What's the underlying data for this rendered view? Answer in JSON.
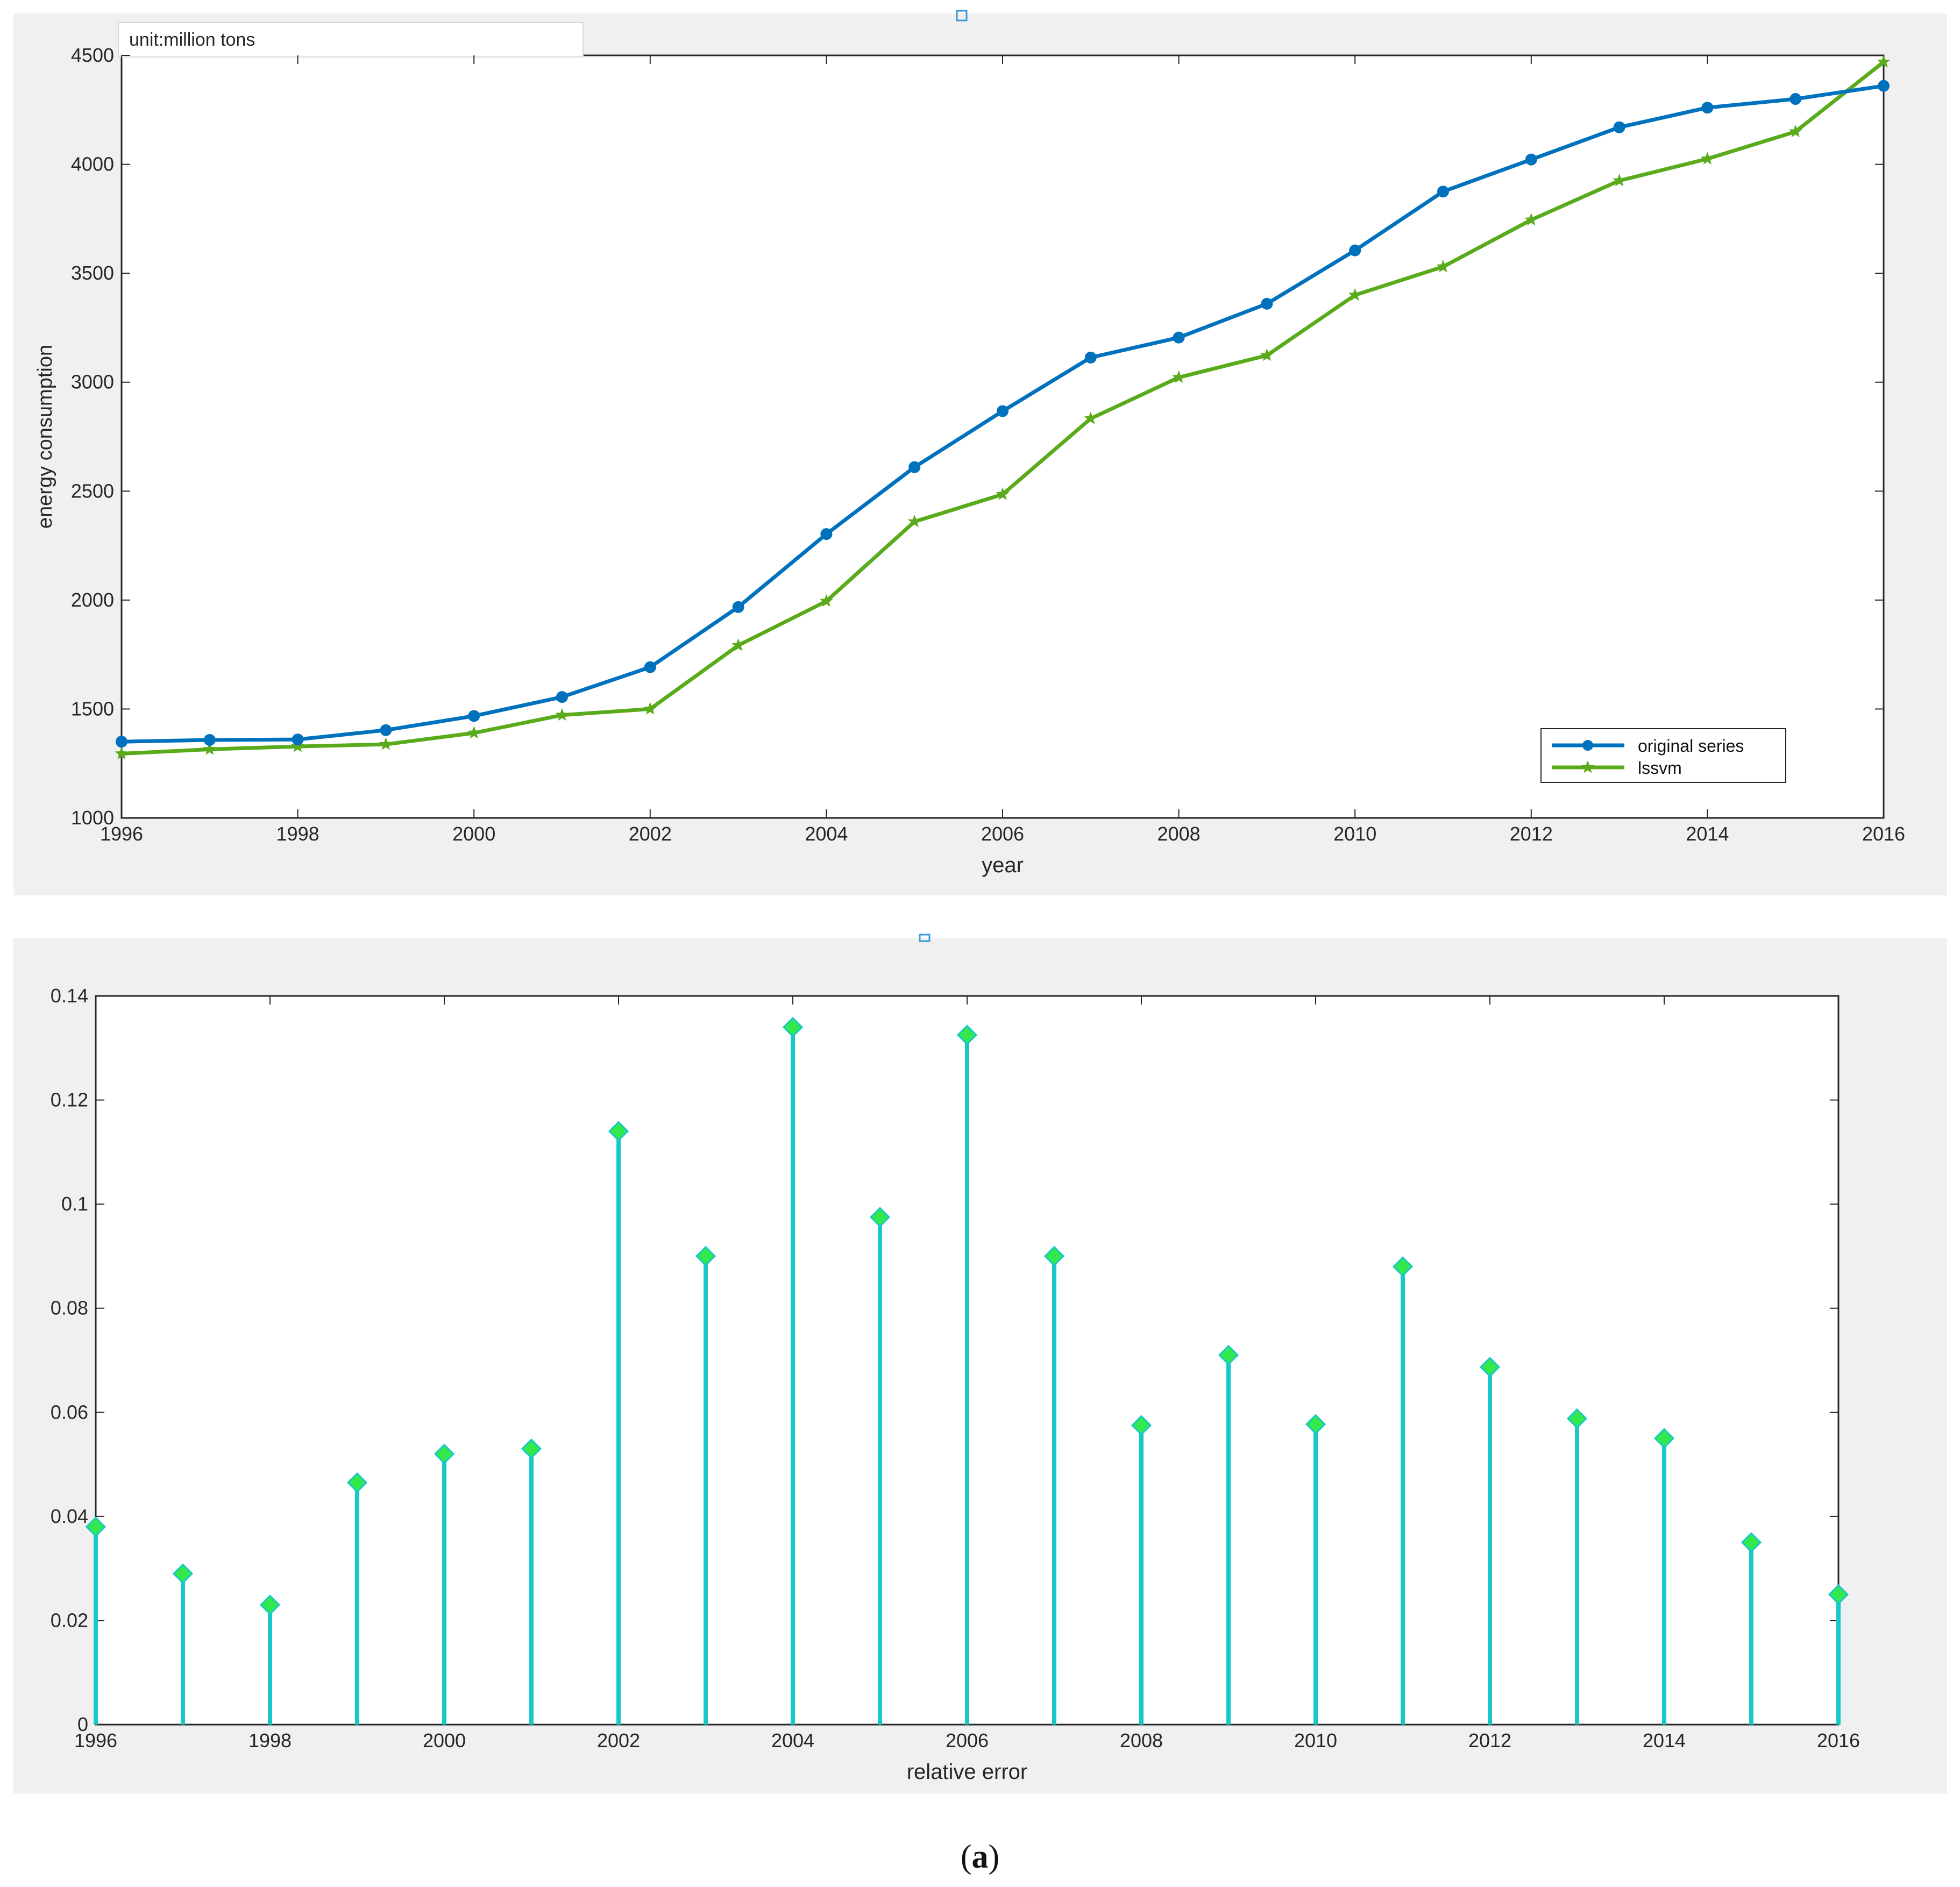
{
  "chart_data": [
    {
      "type": "line",
      "annotation": "unit:million tons",
      "xlabel": "year",
      "ylabel": "energy consumption",
      "xlim": [
        1996,
        2016
      ],
      "ylim": [
        1000,
        4500
      ],
      "x_ticks": [
        1996,
        1998,
        2000,
        2002,
        2004,
        2006,
        2008,
        2010,
        2012,
        2014,
        2016
      ],
      "y_ticks": [
        1000,
        1500,
        2000,
        2500,
        3000,
        3500,
        4000,
        4500
      ],
      "grid": false,
      "legend_position": "bottom-right",
      "x": [
        1996,
        1997,
        1998,
        1999,
        2000,
        2001,
        2002,
        2003,
        2004,
        2005,
        2006,
        2007,
        2008,
        2009,
        2010,
        2011,
        2012,
        2013,
        2014,
        2015,
        2016
      ],
      "series": [
        {
          "name": "original series",
          "color": "#0072bd",
          "marker": "circle",
          "values": [
            1350,
            1358,
            1360,
            1403,
            1468,
            1555,
            1692,
            1968,
            2303,
            2610,
            2867,
            3113,
            3205,
            3360,
            3605,
            3875,
            4022,
            4170,
            4260,
            4300,
            4360
          ]
        },
        {
          "name": "lssvm",
          "color": "#5aab1c",
          "marker": "star",
          "values": [
            1295,
            1315,
            1328,
            1338,
            1390,
            1472,
            1500,
            1792,
            1995,
            2360,
            2485,
            2833,
            3022,
            3123,
            3400,
            3530,
            3745,
            3925,
            4025,
            4150,
            4470
          ]
        }
      ]
    },
    {
      "type": "stem",
      "xlabel": "relative error",
      "ylabel": "",
      "xlim": [
        1996,
        2016
      ],
      "ylim": [
        0,
        0.14
      ],
      "x_ticks": [
        1996,
        1998,
        2000,
        2002,
        2004,
        2006,
        2008,
        2010,
        2012,
        2014,
        2016
      ],
      "y_ticks": [
        "0",
        "0.02",
        "0.04",
        "0.06",
        "0.08",
        "0.1",
        "0.12",
        "0.14"
      ],
      "grid": false,
      "stem_color": "#17c8c8",
      "marker_color": "#33e84a",
      "marker": "diamond",
      "x": [
        1996,
        1997,
        1998,
        1999,
        2000,
        2001,
        2002,
        2003,
        2004,
        2005,
        2006,
        2007,
        2008,
        2009,
        2010,
        2011,
        2012,
        2013,
        2014,
        2015,
        2016
      ],
      "values": [
        0.038,
        0.029,
        0.023,
        0.0465,
        0.052,
        0.053,
        0.114,
        0.09,
        0.134,
        0.0975,
        0.1325,
        0.09,
        0.0575,
        0.071,
        0.0577,
        0.088,
        0.0687,
        0.0588,
        0.055,
        0.035,
        0.025
      ]
    }
  ],
  "caption": {
    "open": "(",
    "letter": "a",
    "close": ")"
  }
}
